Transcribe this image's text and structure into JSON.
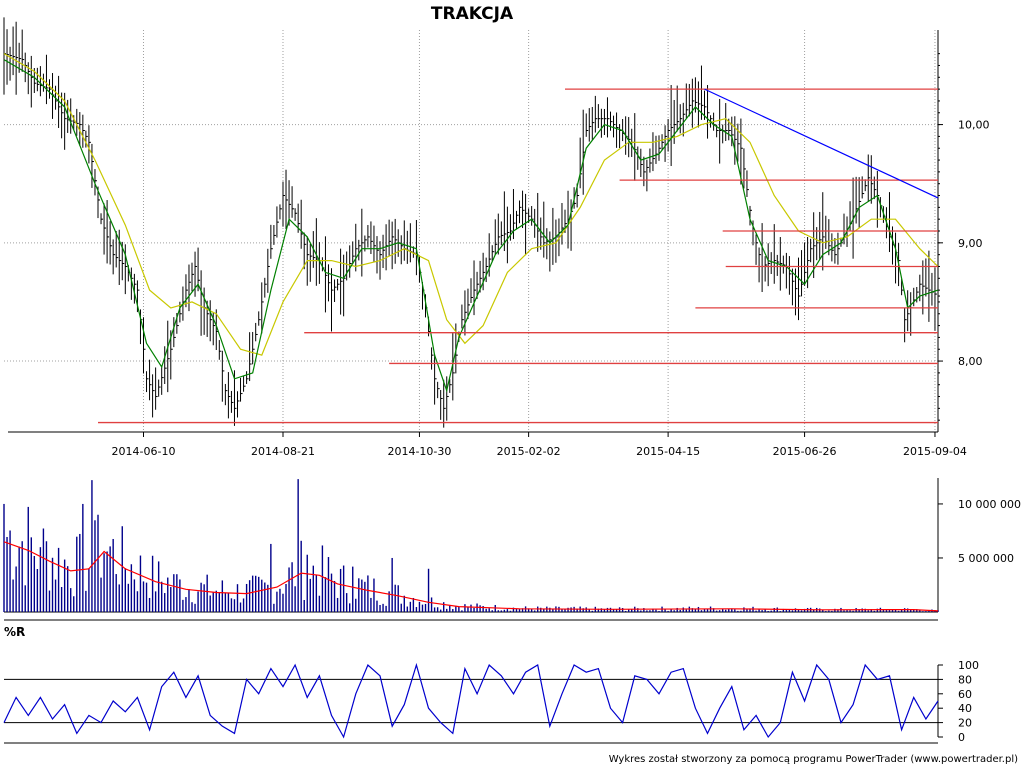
{
  "chart_data": [
    {
      "type": "line",
      "panel": "price",
      "title": "TRAKCJA",
      "xlabel": "",
      "ylabel": "",
      "x_tick_labels": [
        "2014-06-10",
        "2014-08-21",
        "2014-10-30",
        "2015-02-02",
        "2015-04-15",
        "2015-06-26",
        "2015-09-04"
      ],
      "y_tick_labels": [
        "10,00",
        "9,00",
        "8,00"
      ],
      "y_ticks": [
        10.0,
        9.0,
        8.0
      ],
      "ylim": [
        7.4,
        10.8
      ],
      "grid": true,
      "colors": {
        "price_bars": "#000000",
        "short_ma": "#008000",
        "long_ma": "#c8c800",
        "support_resistance": "#e04040",
        "trendline": "#0000ff"
      },
      "price_path": [
        [
          0,
          10.6
        ],
        [
          6,
          10.55
        ],
        [
          10,
          10.35
        ],
        [
          15,
          10.3
        ],
        [
          20,
          10.05
        ],
        [
          25,
          10.0
        ],
        [
          28,
          9.85
        ],
        [
          32,
          9.2
        ],
        [
          36,
          8.9
        ],
        [
          40,
          8.8
        ],
        [
          44,
          8.6
        ],
        [
          47,
          7.85
        ],
        [
          50,
          7.7
        ],
        [
          55,
          8.1
        ],
        [
          60,
          8.6
        ],
        [
          63,
          8.8
        ],
        [
          66,
          8.45
        ],
        [
          70,
          8.25
        ],
        [
          73,
          7.75
        ],
        [
          76,
          7.6
        ],
        [
          80,
          7.85
        ],
        [
          84,
          8.35
        ],
        [
          88,
          8.95
        ],
        [
          92,
          9.4
        ],
        [
          96,
          9.25
        ],
        [
          100,
          8.9
        ],
        [
          104,
          8.85
        ],
        [
          108,
          8.6
        ],
        [
          112,
          8.7
        ],
        [
          116,
          8.95
        ],
        [
          120,
          9.05
        ],
        [
          124,
          8.9
        ],
        [
          128,
          9.05
        ],
        [
          132,
          8.95
        ],
        [
          136,
          8.9
        ],
        [
          139,
          8.45
        ],
        [
          142,
          7.85
        ],
        [
          145,
          7.6
        ],
        [
          148,
          7.9
        ],
        [
          151,
          8.35
        ],
        [
          155,
          8.6
        ],
        [
          159,
          8.8
        ],
        [
          163,
          9.05
        ],
        [
          167,
          9.1
        ],
        [
          170,
          9.3
        ],
        [
          174,
          9.2
        ],
        [
          178,
          9.0
        ],
        [
          182,
          9.05
        ],
        [
          186,
          9.2
        ],
        [
          189,
          9.4
        ],
        [
          192,
          9.95
        ],
        [
          195,
          10.05
        ],
        [
          199,
          10.05
        ],
        [
          203,
          9.95
        ],
        [
          207,
          9.85
        ],
        [
          211,
          9.6
        ],
        [
          215,
          9.75
        ],
        [
          219,
          9.95
        ],
        [
          223,
          10.05
        ],
        [
          227,
          10.2
        ],
        [
          231,
          10.15
        ],
        [
          235,
          9.95
        ],
        [
          239,
          9.95
        ],
        [
          243,
          9.8
        ],
        [
          247,
          9.1
        ],
        [
          250,
          8.8
        ],
        [
          254,
          8.85
        ],
        [
          258,
          8.8
        ],
        [
          262,
          8.55
        ],
        [
          266,
          8.95
        ],
        [
          270,
          9.05
        ],
        [
          274,
          8.9
        ],
        [
          278,
          9.1
        ],
        [
          282,
          9.35
        ],
        [
          285,
          9.55
        ],
        [
          288,
          9.4
        ],
        [
          292,
          9.05
        ],
        [
          295,
          8.85
        ],
        [
          297,
          8.35
        ],
        [
          299,
          8.45
        ],
        [
          302,
          8.65
        ],
        [
          305,
          8.6
        ],
        [
          308,
          8.55
        ]
      ],
      "short_ma_path": [
        [
          0,
          10.55
        ],
        [
          10,
          10.4
        ],
        [
          20,
          10.15
        ],
        [
          30,
          9.5
        ],
        [
          40,
          8.9
        ],
        [
          47,
          8.15
        ],
        [
          52,
          7.95
        ],
        [
          58,
          8.45
        ],
        [
          64,
          8.65
        ],
        [
          70,
          8.3
        ],
        [
          76,
          7.85
        ],
        [
          82,
          7.9
        ],
        [
          88,
          8.6
        ],
        [
          94,
          9.2
        ],
        [
          100,
          9.05
        ],
        [
          106,
          8.75
        ],
        [
          112,
          8.7
        ],
        [
          118,
          8.95
        ],
        [
          124,
          8.95
        ],
        [
          130,
          9.0
        ],
        [
          136,
          8.95
        ],
        [
          142,
          8.05
        ],
        [
          146,
          7.75
        ],
        [
          150,
          8.2
        ],
        [
          156,
          8.55
        ],
        [
          162,
          8.9
        ],
        [
          168,
          9.1
        ],
        [
          174,
          9.2
        ],
        [
          180,
          9.0
        ],
        [
          186,
          9.15
        ],
        [
          192,
          9.8
        ],
        [
          198,
          10.0
        ],
        [
          204,
          9.95
        ],
        [
          210,
          9.7
        ],
        [
          216,
          9.75
        ],
        [
          222,
          9.95
        ],
        [
          228,
          10.15
        ],
        [
          234,
          10.0
        ],
        [
          240,
          9.9
        ],
        [
          246,
          9.2
        ],
        [
          252,
          8.85
        ],
        [
          258,
          8.8
        ],
        [
          264,
          8.65
        ],
        [
          270,
          8.9
        ],
        [
          276,
          9.0
        ],
        [
          282,
          9.3
        ],
        [
          288,
          9.4
        ],
        [
          294,
          8.95
        ],
        [
          298,
          8.45
        ],
        [
          302,
          8.55
        ],
        [
          308,
          8.6
        ]
      ],
      "long_ma_path": [
        [
          0,
          10.6
        ],
        [
          10,
          10.45
        ],
        [
          20,
          10.2
        ],
        [
          30,
          9.7
        ],
        [
          40,
          9.15
        ],
        [
          48,
          8.6
        ],
        [
          55,
          8.45
        ],
        [
          62,
          8.5
        ],
        [
          70,
          8.4
        ],
        [
          78,
          8.1
        ],
        [
          85,
          8.05
        ],
        [
          92,
          8.5
        ],
        [
          100,
          8.85
        ],
        [
          108,
          8.85
        ],
        [
          116,
          8.8
        ],
        [
          124,
          8.85
        ],
        [
          132,
          8.95
        ],
        [
          140,
          8.85
        ],
        [
          146,
          8.35
        ],
        [
          152,
          8.15
        ],
        [
          158,
          8.3
        ],
        [
          166,
          8.75
        ],
        [
          174,
          8.95
        ],
        [
          182,
          9.0
        ],
        [
          190,
          9.3
        ],
        [
          198,
          9.7
        ],
        [
          206,
          9.85
        ],
        [
          214,
          9.85
        ],
        [
          222,
          9.9
        ],
        [
          230,
          10.0
        ],
        [
          238,
          10.05
        ],
        [
          246,
          9.85
        ],
        [
          254,
          9.4
        ],
        [
          262,
          9.1
        ],
        [
          270,
          9.0
        ],
        [
          278,
          9.05
        ],
        [
          286,
          9.2
        ],
        [
          294,
          9.2
        ],
        [
          302,
          8.95
        ],
        [
          308,
          8.8
        ]
      ],
      "horizontal_levels": [
        {
          "y": 10.3,
          "x_range": [
            185,
            308
          ]
        },
        {
          "y": 9.53,
          "x_range": [
            203,
            308
          ]
        },
        {
          "y": 9.1,
          "x_range": [
            237,
            308
          ]
        },
        {
          "y": 8.8,
          "x_range": [
            238,
            308
          ]
        },
        {
          "y": 8.45,
          "x_range": [
            228,
            308
          ]
        },
        {
          "y": 8.24,
          "x_range": [
            99,
            308
          ]
        },
        {
          "y": 7.98,
          "x_range": [
            127,
            308
          ]
        },
        {
          "y": 7.48,
          "x_range": [
            31,
            308
          ]
        }
      ],
      "trendline": {
        "from": [
          231,
          10.3
        ],
        "to": [
          308,
          9.38
        ]
      }
    },
    {
      "type": "bar",
      "panel": "volume",
      "title": "",
      "y_tick_labels": [
        "10 000 000",
        "5 000 000"
      ],
      "y_ticks": [
        10000000,
        5000000
      ],
      "ylim": [
        0,
        12400000
      ],
      "colors": {
        "bars": "#00008b",
        "average": "#ff0000"
      },
      "volume_spikes": [
        [
          0,
          10000000
        ],
        [
          12,
          6000000
        ],
        [
          26,
          10000000
        ],
        [
          29,
          12200000
        ],
        [
          31,
          9000000
        ],
        [
          34,
          5600000
        ],
        [
          56,
          3500000
        ],
        [
          88,
          6300000
        ],
        [
          97,
          12300000
        ],
        [
          100,
          5300000
        ],
        [
          115,
          4200000
        ],
        [
          128,
          5000000
        ],
        [
          140,
          4000000
        ]
      ],
      "volume_average": [
        [
          0,
          6500000
        ],
        [
          8,
          5700000
        ],
        [
          15,
          4700000
        ],
        [
          22,
          3800000
        ],
        [
          28,
          4000000
        ],
        [
          33,
          5600000
        ],
        [
          40,
          4000000
        ],
        [
          50,
          2800000
        ],
        [
          60,
          2100000
        ],
        [
          70,
          1800000
        ],
        [
          80,
          1700000
        ],
        [
          90,
          2300000
        ],
        [
          98,
          3600000
        ],
        [
          104,
          3400000
        ],
        [
          110,
          2600000
        ],
        [
          120,
          2000000
        ],
        [
          130,
          1500000
        ],
        [
          140,
          900000
        ],
        [
          150,
          500000
        ],
        [
          170,
          300000
        ],
        [
          200,
          250000
        ],
        [
          240,
          300000
        ],
        [
          270,
          200000
        ],
        [
          300,
          220000
        ],
        [
          308,
          100000
        ]
      ]
    },
    {
      "type": "line",
      "panel": "%R",
      "title": "%R",
      "y_tick_labels": [
        "100",
        "80",
        "60",
        "40",
        "20",
        "0"
      ],
      "y_ticks": [
        100,
        80,
        60,
        40,
        20,
        0
      ],
      "ylim": [
        0,
        100
      ],
      "reference_lines": [
        80,
        20
      ],
      "colors": {
        "line": "#0000cd"
      },
      "values_path": [
        [
          0,
          20
        ],
        [
          4,
          55
        ],
        [
          8,
          30
        ],
        [
          12,
          55
        ],
        [
          16,
          25
        ],
        [
          20,
          45
        ],
        [
          24,
          5
        ],
        [
          28,
          30
        ],
        [
          32,
          20
        ],
        [
          36,
          50
        ],
        [
          40,
          35
        ],
        [
          44,
          55
        ],
        [
          48,
          10
        ],
        [
          52,
          70
        ],
        [
          56,
          90
        ],
        [
          60,
          55
        ],
        [
          64,
          85
        ],
        [
          68,
          30
        ],
        [
          72,
          15
        ],
        [
          76,
          5
        ],
        [
          80,
          80
        ],
        [
          84,
          60
        ],
        [
          88,
          95
        ],
        [
          92,
          70
        ],
        [
          96,
          100
        ],
        [
          100,
          55
        ],
        [
          104,
          85
        ],
        [
          108,
          30
        ],
        [
          112,
          0
        ],
        [
          116,
          60
        ],
        [
          120,
          100
        ],
        [
          124,
          85
        ],
        [
          128,
          15
        ],
        [
          132,
          45
        ],
        [
          136,
          100
        ],
        [
          140,
          40
        ],
        [
          144,
          20
        ],
        [
          148,
          5
        ],
        [
          152,
          95
        ],
        [
          156,
          60
        ],
        [
          160,
          100
        ],
        [
          164,
          85
        ],
        [
          168,
          60
        ],
        [
          172,
          90
        ],
        [
          176,
          100
        ],
        [
          180,
          15
        ],
        [
          184,
          60
        ],
        [
          188,
          100
        ],
        [
          192,
          90
        ],
        [
          196,
          95
        ],
        [
          200,
          40
        ],
        [
          204,
          20
        ],
        [
          208,
          85
        ],
        [
          212,
          80
        ],
        [
          216,
          60
        ],
        [
          220,
          90
        ],
        [
          224,
          95
        ],
        [
          228,
          40
        ],
        [
          232,
          5
        ],
        [
          236,
          40
        ],
        [
          240,
          70
        ],
        [
          244,
          10
        ],
        [
          248,
          30
        ],
        [
          252,
          0
        ],
        [
          256,
          20
        ],
        [
          260,
          90
        ],
        [
          264,
          50
        ],
        [
          268,
          100
        ],
        [
          272,
          80
        ],
        [
          276,
          20
        ],
        [
          280,
          45
        ],
        [
          284,
          100
        ],
        [
          288,
          80
        ],
        [
          292,
          85
        ],
        [
          296,
          10
        ],
        [
          300,
          55
        ],
        [
          304,
          25
        ],
        [
          308,
          50
        ]
      ]
    }
  ],
  "footer": {
    "credit": "Wykres został stworzony za pomocą programu PowerTrader (www.powertrader.pl)"
  }
}
